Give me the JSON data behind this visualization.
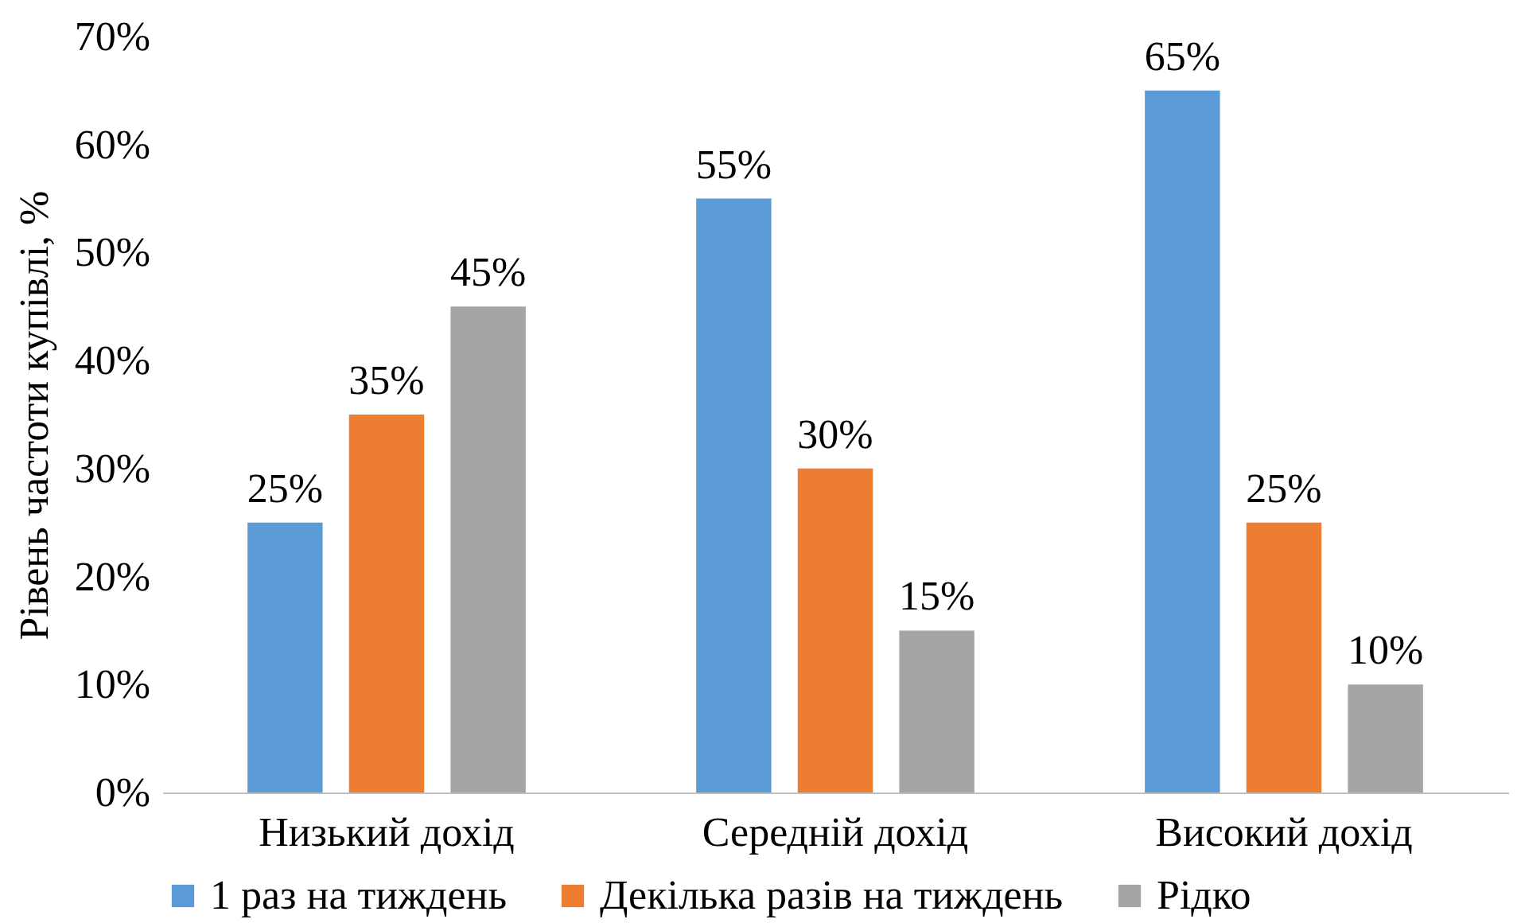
{
  "chart_data": {
    "type": "bar",
    "ylabel": "Рівень частоти купівлі, %",
    "categories": [
      "Низький дохід",
      "Середній дохід",
      "Високий дохід"
    ],
    "series": [
      {
        "name": "1 раз на тиждень",
        "color": "#5b9bd5",
        "values": [
          25,
          55,
          65
        ],
        "value_labels": [
          "25%",
          "55%",
          "65%"
        ]
      },
      {
        "name": "Декілька разів на тиждень",
        "color": "#ed7d31",
        "values": [
          35,
          30,
          25
        ],
        "value_labels": [
          "35%",
          "30%",
          "25%"
        ]
      },
      {
        "name": "Рідко",
        "color": "#a5a5a5",
        "values": [
          45,
          15,
          10
        ],
        "value_labels": [
          "45%",
          "15%",
          "10%"
        ]
      }
    ],
    "ylim": [
      0,
      70
    ],
    "yticks": [
      {
        "value": 0,
        "label": "0%"
      },
      {
        "value": 10,
        "label": "10%"
      },
      {
        "value": 20,
        "label": "20%"
      },
      {
        "value": 30,
        "label": "30%"
      },
      {
        "value": 40,
        "label": "40%"
      },
      {
        "value": 50,
        "label": "50%"
      },
      {
        "value": 60,
        "label": "60%"
      },
      {
        "value": 70,
        "label": "70%"
      }
    ],
    "grid": false,
    "legend": "bottom"
  }
}
